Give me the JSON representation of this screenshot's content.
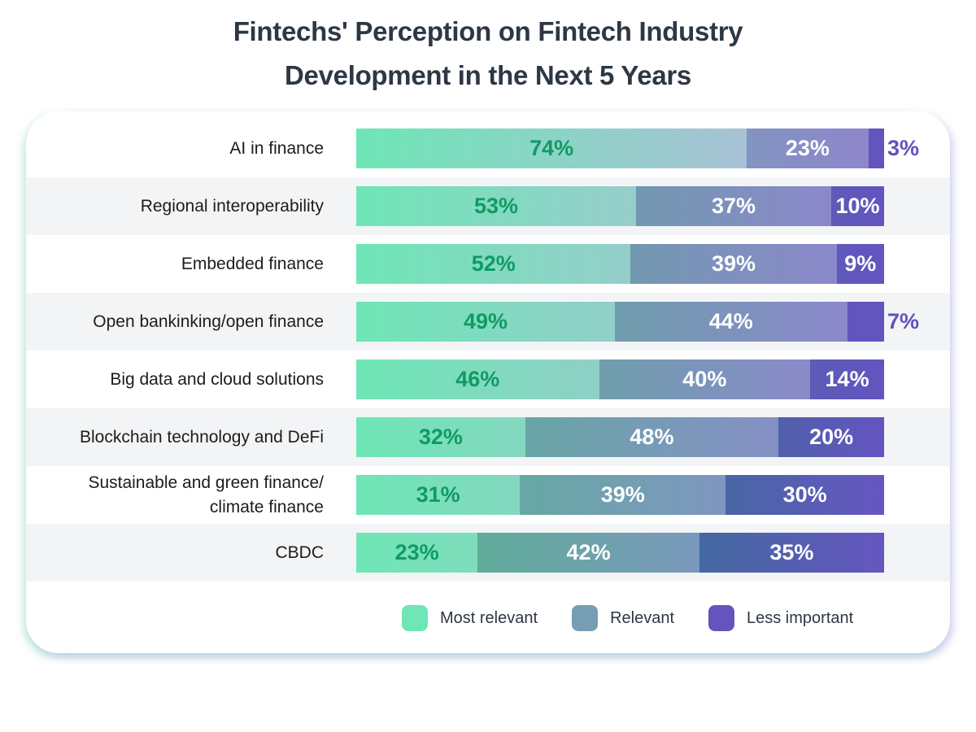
{
  "title": {
    "line1": "Fintechs' Perception on Fintech Industry",
    "line2": "Development in the Next 5 Years"
  },
  "legend": [
    {
      "label": "Most relevant",
      "color": "#6ee6b6"
    },
    {
      "label": "Relevant",
      "color": "#769db3"
    },
    {
      "label": "Less important",
      "color": "#6354be"
    }
  ],
  "rows": [
    {
      "label": "AI in finance",
      "most": 74,
      "relevant": 23,
      "less": 3,
      "most_text": "74%",
      "relevant_text": "23%",
      "less_text": "3%",
      "less_outside": true,
      "grad": {
        "most": [
          "#6ee6b6",
          "#a8c2d6"
        ],
        "relevant": [
          "#8294c0",
          "#8e86cc"
        ],
        "less": [
          "#6354be",
          "#6354be"
        ]
      }
    },
    {
      "label": "Regional interoperability",
      "most": 53,
      "relevant": 37,
      "less": 10,
      "most_text": "53%",
      "relevant_text": "37%",
      "less_text": "10%",
      "less_outside": false,
      "grad": {
        "most": [
          "#6ee6b6",
          "#97cdcc"
        ],
        "relevant": [
          "#7298b0",
          "#8a88ca"
        ],
        "less": [
          "#5d5ab8",
          "#6454c0"
        ]
      }
    },
    {
      "label": "Embedded finance",
      "most": 52,
      "relevant": 39,
      "less": 9,
      "most_text": "52%",
      "relevant_text": "39%",
      "less_text": "9%",
      "less_outside": false,
      "grad": {
        "most": [
          "#6ee6b6",
          "#95cecb"
        ],
        "relevant": [
          "#7298b0",
          "#8a88ca"
        ],
        "less": [
          "#5f58bb",
          "#6454c0"
        ]
      }
    },
    {
      "label": "Open bankinking/open finance",
      "most": 49,
      "relevant": 44,
      "less": 7,
      "most_text": "49%",
      "relevant_text": "44%",
      "less_text": "7%",
      "less_outside": true,
      "grad": {
        "most": [
          "#6ee6b6",
          "#92cfc9"
        ],
        "relevant": [
          "#6e9cac",
          "#8c88cc"
        ],
        "less": [
          "#6354be",
          "#6354be"
        ]
      }
    },
    {
      "label": "Big data and cloud solutions",
      "most": 46,
      "relevant": 40,
      "less": 14,
      "most_text": "46%",
      "relevant_text": "40%",
      "less_text": "14%",
      "less_outside": false,
      "grad": {
        "most": [
          "#6ee6b6",
          "#8fd0c6"
        ],
        "relevant": [
          "#6e9eac",
          "#8a8aca"
        ],
        "less": [
          "#5a5cb6",
          "#6454c0"
        ]
      }
    },
    {
      "label": "Blockchain technology and DeFi",
      "most": 32,
      "relevant": 48,
      "less": 20,
      "most_text": "32%",
      "relevant_text": "48%",
      "less_text": "20%",
      "less_outside": false,
      "grad": {
        "most": [
          "#6ee6b6",
          "#84d8c0"
        ],
        "relevant": [
          "#68a6a6",
          "#8690c6"
        ],
        "less": [
          "#5060ac",
          "#6454c0"
        ]
      }
    },
    {
      "label": "Sustainable and green finance/\nclimate finance",
      "label_line1": "Sustainable and green finance/",
      "label_line2": "climate finance",
      "most": 31,
      "relevant": 39,
      "less": 30,
      "most_text": "31%",
      "relevant_text": "39%",
      "less_text": "30%",
      "less_outside": false,
      "grad": {
        "most": [
          "#6ee6b6",
          "#84d8bf"
        ],
        "relevant": [
          "#66a8a4",
          "#7e96c0"
        ],
        "less": [
          "#4866a6",
          "#6656c0"
        ]
      }
    },
    {
      "label": "CBDC",
      "most": 23,
      "relevant": 42,
      "less": 35,
      "most_text": "23%",
      "relevant_text": "42%",
      "less_text": "35%",
      "less_outside": false,
      "grad": {
        "most": [
          "#6ee6b6",
          "#7edcbc"
        ],
        "relevant": [
          "#60ac9a",
          "#7a98bc"
        ],
        "less": [
          "#4268a0",
          "#6656c0"
        ]
      }
    }
  ],
  "chart_data": {
    "type": "bar",
    "orientation": "horizontal",
    "stacked": true,
    "title": "Fintechs' Perception on Fintech Industry Development in the Next 5 Years",
    "categories": [
      "AI in finance",
      "Regional interoperability",
      "Embedded finance",
      "Open bankinking/open finance",
      "Big data and cloud solutions",
      "Blockchain technology and DeFi",
      "Sustainable and green finance/ climate finance",
      "CBDC"
    ],
    "series": [
      {
        "name": "Most relevant",
        "values": [
          74,
          53,
          52,
          49,
          46,
          32,
          31,
          23
        ]
      },
      {
        "name": "Relevant",
        "values": [
          23,
          37,
          39,
          44,
          40,
          48,
          39,
          42
        ]
      },
      {
        "name": "Less important",
        "values": [
          3,
          10,
          9,
          7,
          14,
          20,
          30,
          35
        ]
      }
    ],
    "unit": "%",
    "xlim": [
      0,
      100
    ],
    "grid": false,
    "legend_position": "bottom-right",
    "xlabel": "",
    "ylabel": ""
  }
}
